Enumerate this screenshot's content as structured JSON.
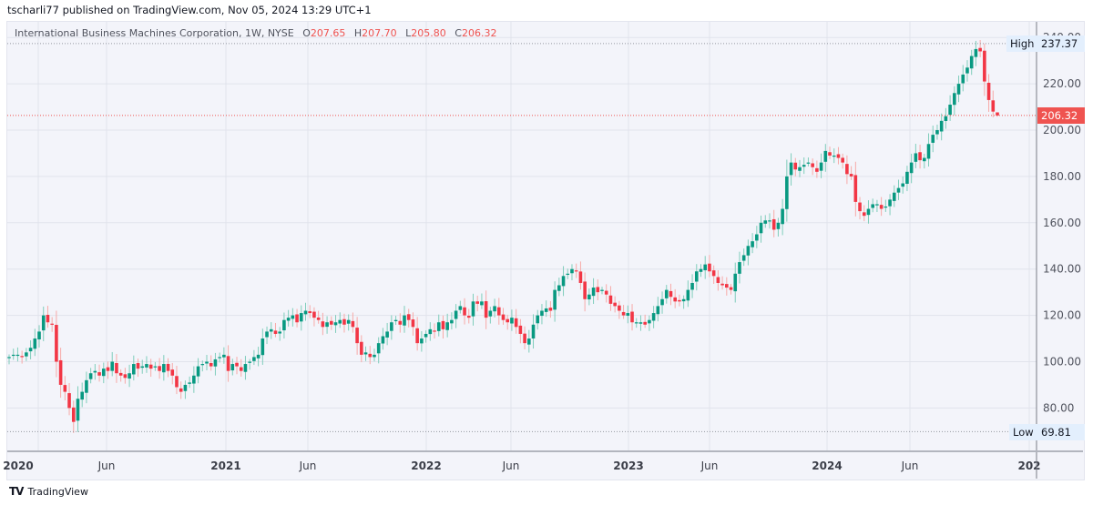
{
  "header": {
    "published_text": "tscharli77 published on TradingView.com, Nov 05, 2024 13:29 UTC+1"
  },
  "legend": {
    "symbol_text": "International Business Machines Corporation, 1W, NYSE",
    "open_label": "O",
    "open": "207.65",
    "high_label": "H",
    "high": "207.70",
    "low_label": "L",
    "low": "205.80",
    "close_label": "C",
    "close": "206.32"
  },
  "markers": {
    "high_label": "High",
    "high_value": "237.37",
    "low_label": "Low",
    "low_value": "69.81",
    "current_value": "206.32"
  },
  "footer": {
    "logo": "TV",
    "brand": "TradingView"
  },
  "colors": {
    "up": "#089981",
    "down": "#f23645",
    "background": "#f3f4fa",
    "grid": "#e1e3ec",
    "current_price": "#ef5350"
  },
  "chart_data": {
    "type": "candlestick",
    "title": "International Business Machines Corporation, 1W, NYSE",
    "interval": "1W",
    "price_axis": {
      "ticks": [
        80,
        100,
        120,
        140,
        160,
        180,
        200,
        220,
        240
      ],
      "labels": [
        "80.00",
        "100.00",
        "120.00",
        "140.00",
        "160.00",
        "180.00",
        "200.00",
        "220.00",
        "240.00"
      ],
      "range": [
        65,
        242
      ]
    },
    "time_axis": {
      "labels": [
        "2020",
        "Jun",
        "2021",
        "Jun",
        "2022",
        "Jun",
        "2023",
        "Jun",
        "2024",
        "Jun",
        "202"
      ]
    },
    "high": 237.37,
    "low": 69.81,
    "last_close": 206.32,
    "last_bar": {
      "open": 207.65,
      "high": 207.7,
      "low": 205.8,
      "close": 206.32
    },
    "approx_weekly_closes": [
      102,
      103,
      103,
      102,
      104,
      106,
      110,
      113,
      120,
      117,
      116,
      100,
      90,
      87,
      80,
      74,
      84,
      87,
      92,
      95,
      96,
      94,
      97,
      96,
      100,
      95,
      94,
      93,
      95,
      99,
      97,
      98,
      99,
      97,
      98,
      96,
      99,
      96,
      94,
      89,
      87,
      90,
      91,
      94,
      98,
      99,
      100,
      98,
      101,
      102,
      103,
      96,
      99,
      98,
      96,
      99,
      100,
      102,
      103,
      110,
      113,
      114,
      112,
      113,
      118,
      119,
      120,
      117,
      121,
      122,
      121,
      119,
      118,
      115,
      117,
      116,
      117,
      118,
      116,
      118,
      115,
      108,
      103,
      104,
      102,
      103,
      108,
      111,
      113,
      117,
      118,
      116,
      120,
      118,
      115,
      108,
      110,
      112,
      114,
      113,
      117,
      114,
      117,
      118,
      122,
      124,
      120,
      119,
      126,
      125,
      126,
      119,
      122,
      124,
      120,
      118,
      117,
      119,
      115,
      112,
      108,
      110,
      116,
      120,
      122,
      123,
      122,
      131,
      133,
      137,
      138,
      140,
      139,
      134,
      127,
      129,
      132,
      130,
      131,
      129,
      125,
      124,
      122,
      120,
      121,
      117,
      117,
      117,
      116,
      118,
      121,
      124,
      127,
      131,
      128,
      126,
      126,
      127,
      131,
      134,
      139,
      140,
      142,
      139,
      137,
      134,
      133,
      132,
      131,
      138,
      143,
      146,
      150,
      152,
      155,
      160,
      161,
      161,
      157,
      160,
      166,
      180,
      186,
      183,
      184,
      185,
      186,
      184,
      182,
      186,
      191,
      189,
      189,
      188,
      186,
      181,
      180,
      169,
      165,
      163,
      166,
      168,
      168,
      166,
      167,
      170,
      173,
      175,
      177,
      182,
      186,
      190,
      187,
      188,
      194,
      198,
      200,
      204,
      206,
      211,
      216,
      220,
      224,
      227,
      232,
      235,
      234,
      221,
      213,
      208,
      206
    ]
  }
}
